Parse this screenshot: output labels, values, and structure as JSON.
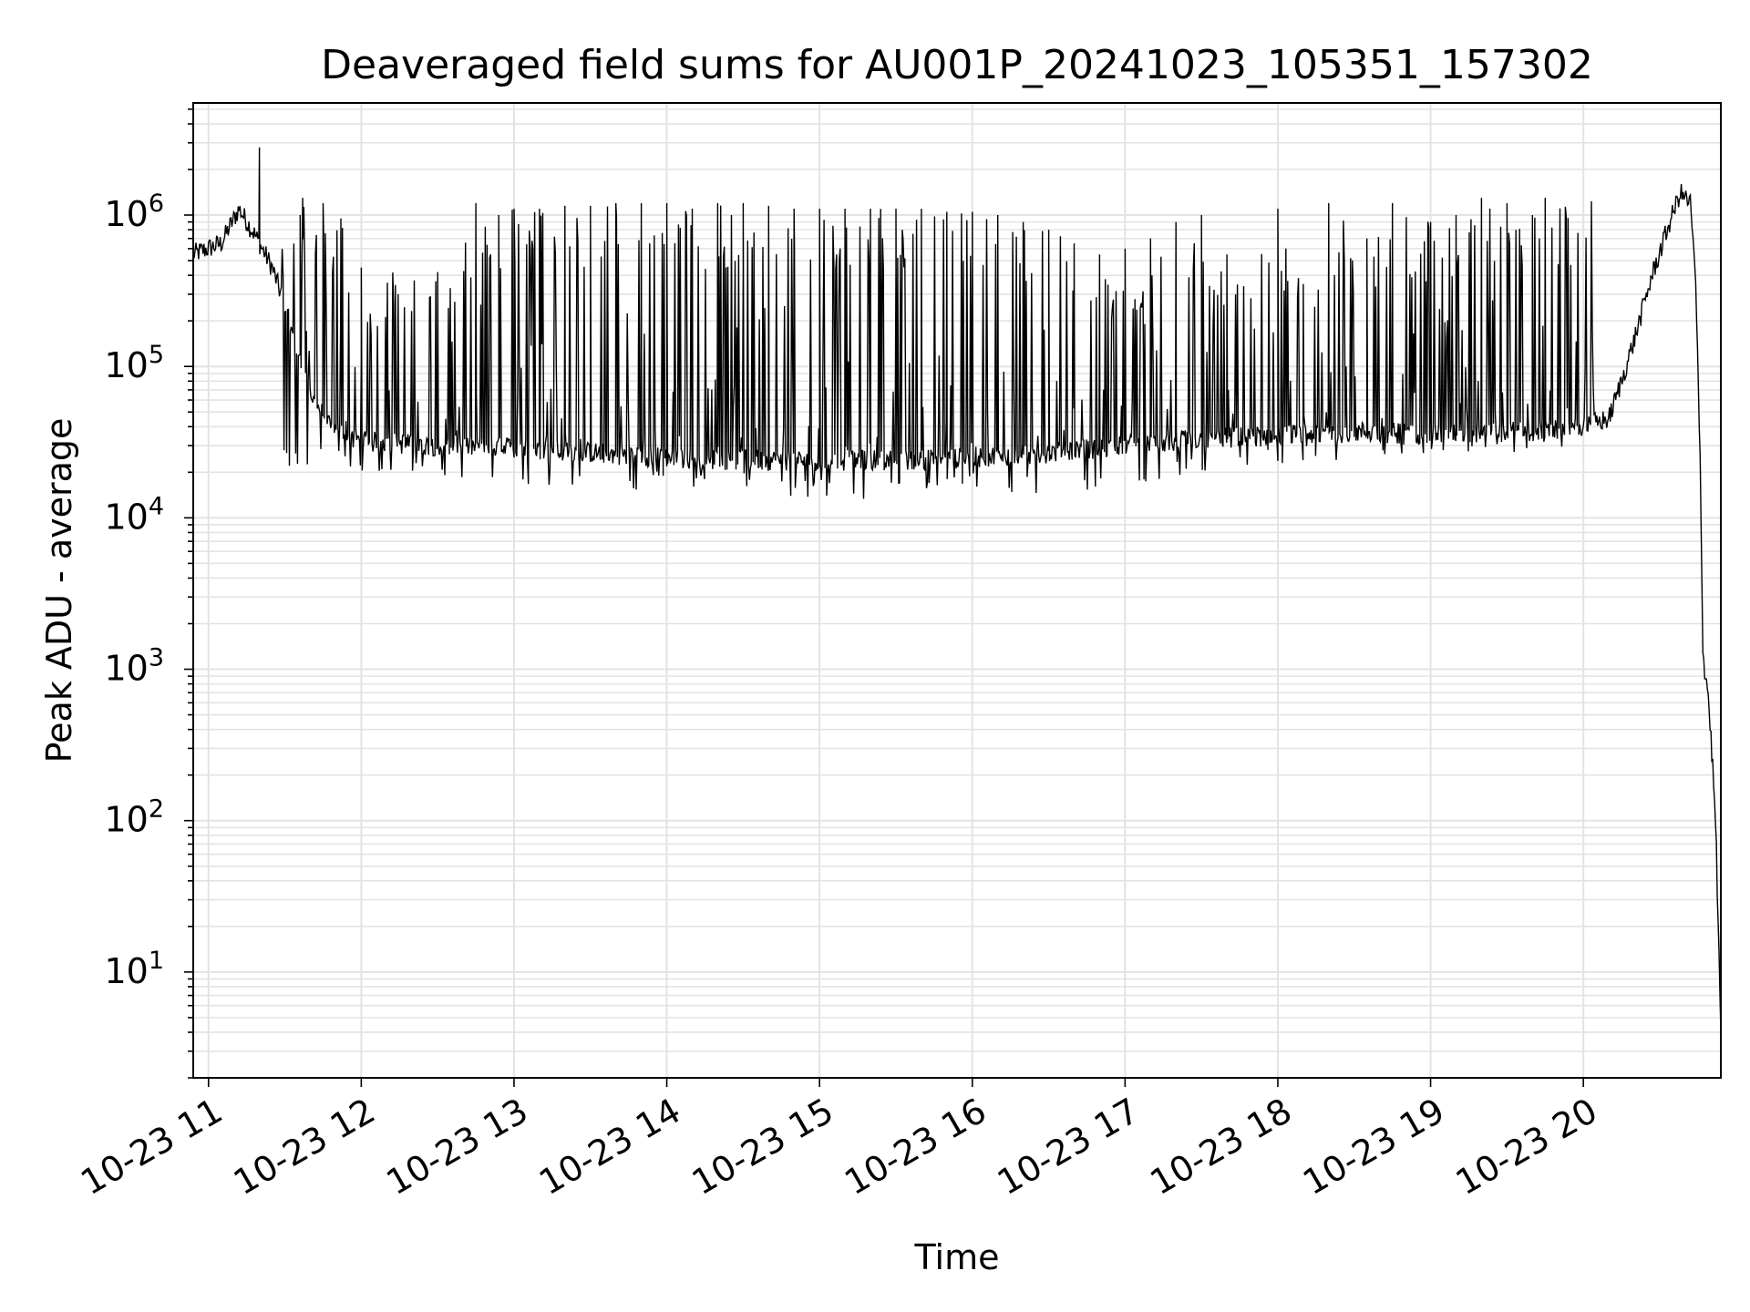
{
  "chart_data": {
    "type": "line",
    "title": "Deaveraged field sums for AU001P_20241023_105351_157302",
    "xlabel": "Time",
    "ylabel": "Peak ADU - average",
    "x_scale": "time",
    "y_scale": "log",
    "xlim": [
      "2024-10-23 10:54",
      "2024-10-23 20:54"
    ],
    "ylim": [
      2,
      5500000
    ],
    "x_tick_labels": [
      "10-23 11",
      "10-23 12",
      "10-23 13",
      "10-23 14",
      "10-23 15",
      "10-23 16",
      "10-23 17",
      "10-23 18",
      "10-23 19",
      "10-23 20"
    ],
    "y_ticks": [
      10,
      100,
      1000,
      10000,
      100000,
      1000000
    ],
    "y_tick_labels": [
      {
        "base": "10",
        "exp": "1"
      },
      {
        "base": "10",
        "exp": "2"
      },
      {
        "base": "10",
        "exp": "3"
      },
      {
        "base": "10",
        "exp": "4"
      },
      {
        "base": "10",
        "exp": "5"
      },
      {
        "base": "10",
        "exp": "6"
      }
    ],
    "grid": true,
    "line_color": "#000000",
    "series": [
      {
        "baseline": [
          [
            "2024-10-23 10:54",
            550000
          ],
          [
            "2024-10-23 11:05",
            650000
          ],
          [
            "2024-10-23 11:12",
            1100000
          ],
          [
            "2024-10-23 11:18",
            750000
          ],
          [
            "2024-10-23 11:25",
            450000
          ],
          [
            "2024-10-23 11:30",
            250000
          ],
          [
            "2024-10-23 11:35",
            120000
          ],
          [
            "2024-10-23 11:42",
            55000
          ],
          [
            "2024-10-23 11:50",
            38000
          ],
          [
            "2024-10-23 12:00",
            32000
          ],
          [
            "2024-10-23 12:30",
            30000
          ],
          [
            "2024-10-23 13:00",
            29000
          ],
          [
            "2024-10-23 13:30",
            27000
          ],
          [
            "2024-10-23 14:00",
            25000
          ],
          [
            "2024-10-23 14:30",
            24000
          ],
          [
            "2024-10-23 15:00",
            24000
          ],
          [
            "2024-10-23 15:30",
            24000
          ],
          [
            "2024-10-23 16:00",
            25000
          ],
          [
            "2024-10-23 16:30",
            27000
          ],
          [
            "2024-10-23 17:00",
            30000
          ],
          [
            "2024-10-23 17:30",
            33000
          ],
          [
            "2024-10-23 18:00",
            35000
          ],
          [
            "2024-10-23 18:30",
            37000
          ],
          [
            "2024-10-23 19:00",
            36000
          ],
          [
            "2024-10-23 19:30",
            37000
          ],
          [
            "2024-10-23 19:55",
            38000
          ],
          [
            "2024-10-23 20:10",
            45000
          ],
          [
            "2024-10-23 20:15",
            80000
          ],
          [
            "2024-10-23 20:20",
            150000
          ],
          [
            "2024-10-23 20:27",
            400000
          ],
          [
            "2024-10-23 20:34",
            900000
          ],
          [
            "2024-10-23 20:38",
            1400000
          ],
          [
            "2024-10-23 20:42",
            1200000
          ],
          [
            "2024-10-23 20:44",
            400000
          ],
          [
            "2024-10-23 20:46",
            20000
          ],
          [
            "2024-10-23 20:47",
            1200
          ],
          [
            "2024-10-23 20:49",
            700
          ],
          [
            "2024-10-23 20:51",
            200
          ],
          [
            "2024-10-23 20:52",
            90
          ],
          [
            "2024-10-23 20:54",
            4
          ]
        ],
        "spikes": [
          [
            "2024-10-23 11:20",
            2800000
          ],
          [
            "2024-10-23 11:36",
            1000000
          ],
          [
            "2024-10-23 11:37",
            1300000
          ],
          [
            "2024-10-23 11:45",
            1200000
          ],
          [
            "2024-10-23 11:52",
            950000
          ],
          [
            "2024-10-23 12:00",
            450000
          ],
          [
            "2024-10-23 12:30",
            420000
          ],
          [
            "2024-10-23 12:45",
            1200000
          ],
          [
            "2024-10-23 12:54",
            1000000
          ],
          [
            "2024-10-23 13:00",
            1100000
          ],
          [
            "2024-10-23 13:10",
            1100000
          ],
          [
            "2024-10-23 13:20",
            1150000
          ],
          [
            "2024-10-23 13:30",
            1150000
          ],
          [
            "2024-10-23 13:40",
            1200000
          ],
          [
            "2024-10-23 13:50",
            1200000
          ],
          [
            "2024-10-23 14:00",
            1200000
          ],
          [
            "2024-10-23 14:10",
            1100000
          ],
          [
            "2024-10-23 14:20",
            1200000
          ],
          [
            "2024-10-23 14:30",
            1200000
          ],
          [
            "2024-10-23 14:40",
            1150000
          ],
          [
            "2024-10-23 14:50",
            1100000
          ],
          [
            "2024-10-23 15:00",
            1100000
          ],
          [
            "2024-10-23 15:10",
            1100000
          ],
          [
            "2024-10-23 15:20",
            1100000
          ],
          [
            "2024-10-23 15:30",
            1100000
          ],
          [
            "2024-10-23 15:40",
            1100000
          ],
          [
            "2024-10-23 15:50",
            1050000
          ],
          [
            "2024-10-23 16:00",
            1050000
          ],
          [
            "2024-10-23 16:10",
            1000000
          ],
          [
            "2024-10-23 16:20",
            900000
          ],
          [
            "2024-10-23 16:30",
            800000
          ],
          [
            "2024-10-23 16:40",
            650000
          ],
          [
            "2024-10-23 16:50",
            550000
          ],
          [
            "2024-10-23 17:00",
            600000
          ],
          [
            "2024-10-23 17:10",
            700000
          ],
          [
            "2024-10-23 17:20",
            900000
          ],
          [
            "2024-10-23 17:30",
            1000000
          ],
          [
            "2024-10-23 17:40",
            550000
          ],
          [
            "2024-10-23 18:00",
            1100000
          ],
          [
            "2024-10-23 18:10",
            350000
          ],
          [
            "2024-10-23 18:20",
            1200000
          ],
          [
            "2024-10-23 18:35",
            700000
          ],
          [
            "2024-10-23 18:45",
            1200000
          ],
          [
            "2024-10-23 19:00",
            900000
          ],
          [
            "2024-10-23 19:10",
            1000000
          ],
          [
            "2024-10-23 19:20",
            1300000
          ],
          [
            "2024-10-23 19:30",
            1200000
          ],
          [
            "2024-10-23 19:40",
            1000000
          ],
          [
            "2024-10-23 19:45",
            1300000
          ]
        ],
        "minima": [
          [
            "2024-10-23 11:50",
            22000
          ],
          [
            "2024-10-23 12:20",
            18000
          ],
          [
            "2024-10-23 13:20",
            16000
          ],
          [
            "2024-10-23 13:40",
            15000
          ],
          [
            "2024-10-23 14:15",
            16000
          ],
          [
            "2024-10-23 14:45",
            14000
          ],
          [
            "2024-10-23 15:30",
            13000
          ],
          [
            "2024-10-23 16:00",
            15000
          ],
          [
            "2024-10-23 16:30",
            14000
          ],
          [
            "2024-10-23 17:00",
            16000
          ],
          [
            "2024-10-23 17:30",
            19000
          ],
          [
            "2024-10-23 18:00",
            22000
          ],
          [
            "2024-10-23 18:40",
            25000
          ],
          [
            "2024-10-23 19:20",
            26000
          ],
          [
            "2024-10-23 19:50",
            29000
          ]
        ]
      }
    ]
  }
}
